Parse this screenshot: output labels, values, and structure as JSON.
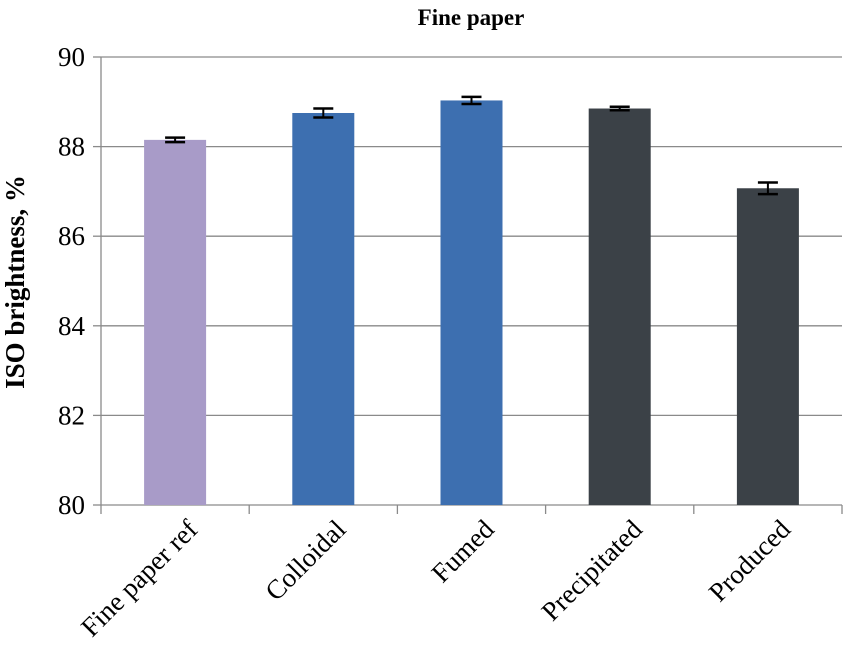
{
  "chart_data": {
    "type": "bar",
    "title": "Fine paper",
    "xlabel": "",
    "ylabel": "ISO brightness, %",
    "ylim": [
      80,
      90
    ],
    "yticks": [
      80,
      82,
      84,
      86,
      88,
      90
    ],
    "grid": true,
    "categories": [
      "Fine paper ref",
      "Colloidal",
      "Fumed",
      "Precipitated",
      "Produced"
    ],
    "values": [
      88.15,
      88.75,
      89.03,
      88.85,
      87.07
    ],
    "errors": [
      0.05,
      0.1,
      0.08,
      0.04,
      0.13
    ],
    "colors": [
      "#a89bc8",
      "#3d6fb0",
      "#3d6fb0",
      "#3b4147",
      "#3b4147"
    ]
  }
}
